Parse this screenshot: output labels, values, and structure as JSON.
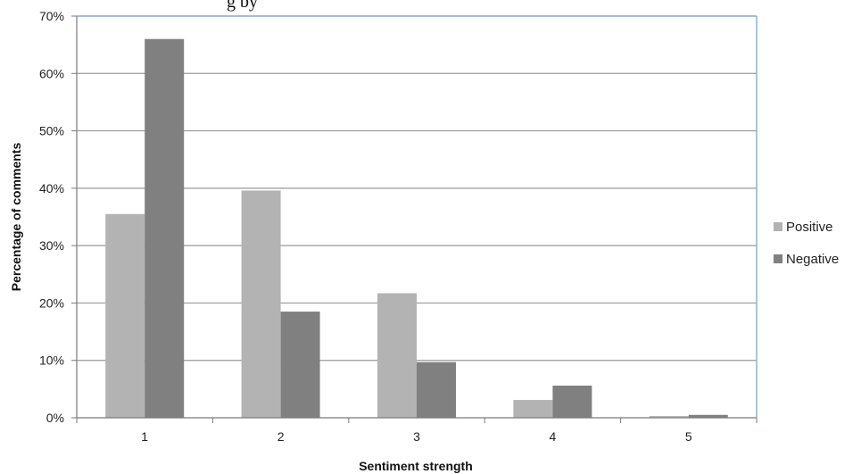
{
  "header_fragment": "g by",
  "chart_data": {
    "type": "bar",
    "title": "",
    "xlabel": "Sentiment strength",
    "ylabel": "Percentage of comments",
    "categories": [
      "1",
      "2",
      "3",
      "4",
      "5"
    ],
    "series": [
      {
        "name": "Positive",
        "values": [
          35.5,
          39.6,
          21.7,
          3.1,
          0.3
        ]
      },
      {
        "name": "Negative",
        "values": [
          66.0,
          18.5,
          9.7,
          5.6,
          0.5
        ]
      }
    ],
    "ylim": [
      0,
      70
    ],
    "yticks": [
      0,
      10,
      20,
      30,
      40,
      50,
      60,
      70
    ],
    "ytick_labels": [
      "0%",
      "10%",
      "20%",
      "30%",
      "40%",
      "50%",
      "60%",
      "70%"
    ],
    "grid": true,
    "legend_position": "right",
    "colors": {
      "Positive": "#b3b3b3",
      "Negative": "#808080",
      "grid": "#9a9a9a",
      "frame": "#7aa6d2"
    }
  }
}
